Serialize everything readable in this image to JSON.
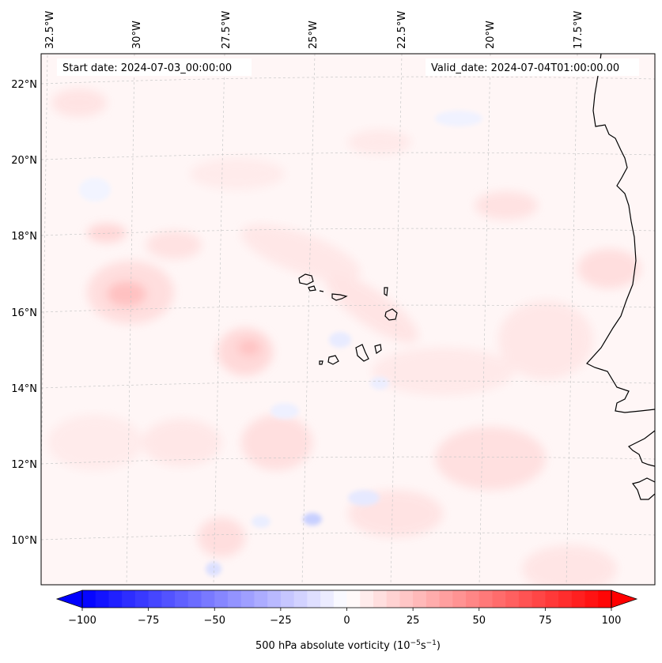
{
  "map": {
    "start_date_text": "Start date: 2024-07-03_00:00:00",
    "valid_date_text": "Valid_date: 2024-07-04T01:00:00.00",
    "lon_labels": [
      "32.5°W",
      "30°W",
      "27.5°W",
      "25°W",
      "22.5°W",
      "20°W",
      "17.5°W"
    ],
    "lat_labels": [
      "22°N",
      "20°N",
      "18°N",
      "16°N",
      "14°N",
      "12°N",
      "10°N"
    ],
    "colorbar": {
      "label": "500 hPa absolute vorticity (10",
      "label_sup1": "−5",
      "label_mid": "s",
      "label_sup2": "−1",
      "label_end": ")",
      "ticks": [
        "−100",
        "−75",
        "−50",
        "−25",
        "0",
        "25",
        "50",
        "75",
        "100"
      ],
      "min": -100,
      "max": 100
    },
    "colors": {
      "neg": "#0000ff",
      "pos": "#ff0000",
      "coast": "#000000"
    }
  }
}
